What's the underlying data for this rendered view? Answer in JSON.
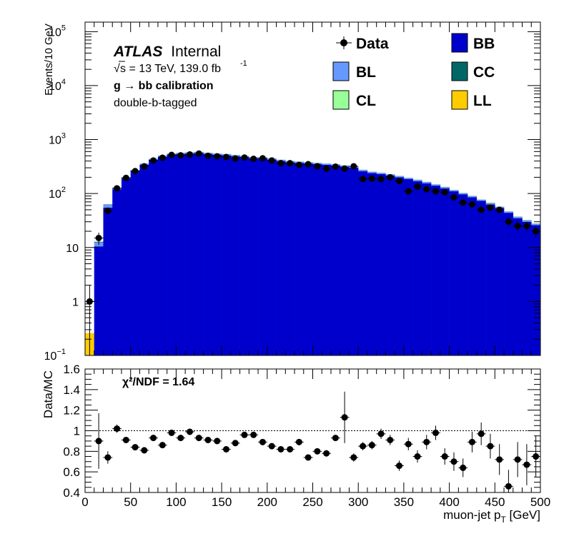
{
  "atlas": {
    "brand": "ATLAS",
    "status": "Internal"
  },
  "info": {
    "energy": "s = 13 TeV, 139.0 fb",
    "lumi_exp": "-1",
    "calib": "g  → bb calibration",
    "tag": "double-b-tagged"
  },
  "legend": {
    "data": "Data",
    "bl": "BL",
    "cl": "CL",
    "bb": "BB",
    "cc": "CC",
    "ll": "LL"
  },
  "ratio_text": "χ²/NDF = 1.64",
  "colors": {
    "bb": "#0000cc",
    "bl": "#6699ff",
    "cc": "#006666",
    "cl": "#99ff99",
    "ll": "#ffcc00",
    "data": "#000000"
  },
  "chart_data": [
    {
      "type": "bar",
      "histogram": "stacked",
      "ylabel": "Events/10 GeV",
      "yscale": "log",
      "ylim": [
        0.1,
        150000
      ],
      "xlim": [
        0,
        500
      ],
      "yticks": [
        {
          "v": 100000,
          "b": "10",
          "e": "5"
        },
        {
          "v": 10000,
          "b": "10",
          "e": "4"
        },
        {
          "v": 1000,
          "b": "10",
          "e": "3"
        },
        {
          "v": 100,
          "b": "10",
          "e": "2"
        },
        {
          "v": 10,
          "b": "10",
          "e": ""
        },
        {
          "v": 1,
          "b": "1",
          "e": ""
        },
        {
          "v": 0.1,
          "b": "10",
          "e": "−1"
        }
      ],
      "bin_edges": [
        0,
        10,
        20,
        30,
        40,
        50,
        60,
        70,
        80,
        90,
        100,
        110,
        120,
        130,
        140,
        150,
        160,
        170,
        180,
        190,
        200,
        210,
        220,
        230,
        240,
        250,
        260,
        270,
        280,
        290,
        300,
        310,
        320,
        330,
        340,
        350,
        360,
        370,
        380,
        390,
        400,
        410,
        420,
        430,
        440,
        450,
        460,
        470,
        480,
        490,
        500
      ],
      "series": [
        {
          "name": "BB",
          "values": [
            0.1,
            10.5,
            55,
            120,
            190,
            260,
            340,
            420,
            480,
            520,
            540,
            550,
            560,
            540,
            520,
            510,
            490,
            470,
            450,
            440,
            425,
            400,
            380,
            370,
            360,
            350,
            340,
            330,
            315,
            300,
            260,
            240,
            230,
            215,
            200,
            185,
            170,
            155,
            140,
            125,
            110,
            97,
            85,
            73,
            63,
            54,
            44,
            35,
            30,
            26
          ]
        },
        {
          "name": "BL",
          "values": [
            0,
            2,
            7,
            6,
            8,
            10,
            14,
            17,
            20,
            22,
            23,
            24,
            25,
            24,
            23,
            23,
            22,
            21,
            20,
            20,
            19,
            18,
            17,
            17,
            16,
            16,
            15,
            15,
            14,
            13,
            12,
            11,
            10,
            10,
            9,
            8,
            8,
            7,
            6,
            6,
            5,
            4,
            4,
            3,
            3,
            2.5,
            2,
            1.7,
            1.5,
            1.3
          ]
        },
        {
          "name": "CC",
          "values": [
            0,
            0.3,
            1,
            2,
            2.5,
            3,
            4,
            4,
            5,
            5,
            5,
            5,
            5,
            5,
            5,
            5,
            5,
            5,
            4,
            4,
            4,
            4,
            4,
            3,
            3,
            3,
            3,
            3,
            3,
            3,
            3,
            2,
            2,
            2,
            2,
            2,
            2,
            2,
            1.5,
            1.5,
            1,
            1,
            1,
            1,
            1,
            0.5,
            0.5,
            0.5,
            0.5,
            0.3
          ]
        },
        {
          "name": "CL",
          "values": [
            0,
            0.1,
            0.3,
            0.5,
            0.6,
            0.8,
            1,
            1,
            1,
            1,
            1,
            1,
            1,
            1,
            1,
            1,
            1,
            1,
            1,
            1,
            1,
            1,
            1,
            1,
            1,
            1,
            1,
            1,
            1,
            1,
            1,
            0.5,
            0.5,
            0.5,
            0.5,
            0.5,
            0.5,
            0.5,
            0.5,
            0.5,
            0.3,
            0.3,
            0.3,
            0.3,
            0.3,
            0.2,
            0.2,
            0.2,
            0.2,
            0.2
          ]
        },
        {
          "name": "LL",
          "values": [
            0.16,
            0.03,
            0.05,
            0.05,
            0.05,
            0.05,
            0.05,
            0.05,
            0.05,
            0.05,
            0.05,
            0.05,
            0.05,
            0.05,
            0.05,
            0.05,
            0.05,
            0.05,
            0.05,
            0.05,
            0.05,
            0.05,
            0.05,
            0.05,
            0.05,
            0.05,
            0.05,
            0.05,
            0.05,
            0.05,
            0.05,
            0.05,
            0.05,
            0.05,
            0.05,
            0.05,
            0.05,
            0.05,
            0.05,
            0.05,
            0.05,
            0.05,
            0.05,
            0.05,
            0.05,
            0.05,
            0.05,
            0.05,
            0.05,
            0.05
          ]
        },
        {
          "name": "Data",
          "values": [
            1.0,
            15,
            48,
            125,
            195,
            260,
            320,
            410,
            460,
            520,
            510,
            530,
            550,
            500,
            490,
            475,
            445,
            465,
            440,
            450,
            410,
            365,
            365,
            340,
            350,
            320,
            290,
            315,
            290,
            320,
            185,
            190,
            185,
            200,
            170,
            110,
            135,
            120,
            110,
            105,
            85,
            68,
            63,
            50,
            55,
            50,
            30,
            25,
            25,
            20
          ]
        }
      ]
    },
    {
      "type": "scatter",
      "ylabel": "Data/MC",
      "xlabel": "muon-jet p_T [GeV]",
      "xlim": [
        0,
        500
      ],
      "ylim": [
        0.4,
        1.6
      ],
      "xticks": [
        0,
        50,
        100,
        150,
        200,
        250,
        300,
        350,
        400,
        450,
        500
      ],
      "yticks": [
        0.4,
        0.6,
        0.8,
        1,
        1.2,
        1.4,
        1.6
      ],
      "reference_line": 1,
      "x": [
        15,
        25,
        35,
        45,
        55,
        65,
        75,
        85,
        95,
        105,
        115,
        125,
        135,
        145,
        155,
        165,
        175,
        185,
        195,
        205,
        215,
        225,
        235,
        245,
        255,
        265,
        275,
        285,
        295,
        305,
        315,
        325,
        335,
        345,
        355,
        365,
        375,
        385,
        395,
        405,
        415,
        425,
        435,
        445,
        455,
        465,
        475,
        485,
        495
      ],
      "y": [
        0.9,
        0.74,
        1.02,
        0.91,
        0.84,
        0.81,
        0.93,
        0.86,
        0.98,
        0.93,
        0.99,
        0.93,
        0.91,
        0.9,
        0.82,
        0.88,
        0.96,
        0.96,
        0.89,
        0.85,
        0.82,
        0.82,
        0.89,
        0.74,
        0.8,
        0.78,
        0.93,
        1.13,
        0.74,
        0.85,
        0.86,
        0.97,
        0.91,
        0.66,
        0.87,
        0.75,
        0.89,
        0.98,
        0.75,
        0.7,
        0.64,
        0.89,
        0.97,
        0.85,
        0.72,
        0.46,
        0.72,
        0.67,
        0.75
      ],
      "yerr": [
        0.27,
        0.06,
        0.04,
        0.03,
        0.03,
        0.03,
        0.03,
        0.03,
        0.03,
        0.03,
        0.03,
        0.03,
        0.03,
        0.03,
        0.03,
        0.03,
        0.03,
        0.03,
        0.03,
        0.03,
        0.03,
        0.03,
        0.03,
        0.03,
        0.03,
        0.03,
        0.03,
        0.25,
        0.04,
        0.04,
        0.04,
        0.05,
        0.05,
        0.05,
        0.06,
        0.06,
        0.07,
        0.07,
        0.08,
        0.09,
        0.09,
        0.1,
        0.11,
        0.12,
        0.15,
        0.16,
        0.17,
        0.2,
        0.2
      ]
    }
  ]
}
